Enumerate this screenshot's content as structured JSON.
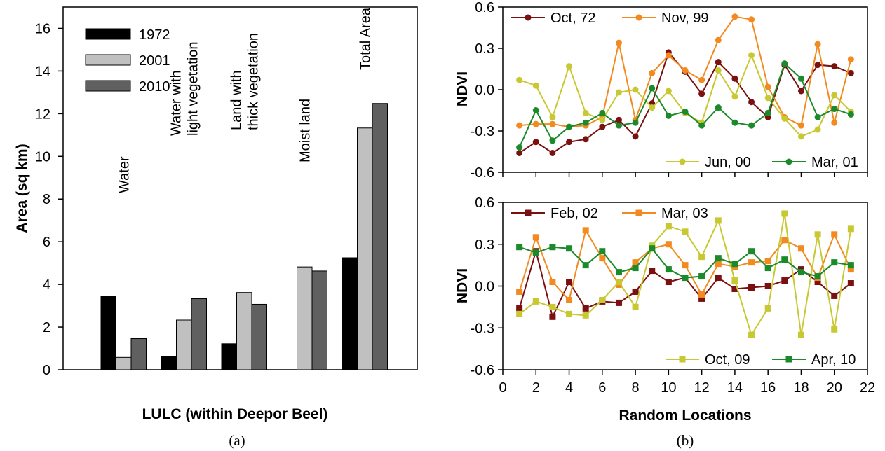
{
  "panel_labels": {
    "a": "(a)",
    "b": "(b)"
  },
  "chart_data": [
    {
      "type": "bar",
      "ylabel": "Area (sq km)",
      "xlabel": "LULC (within Deepor Beel)",
      "ylim": [
        0,
        17
      ],
      "yticks": [
        "0",
        "2",
        "4",
        "6",
        "8",
        "10",
        "12",
        "14",
        "16"
      ],
      "categories": [
        [
          "Water"
        ],
        [
          "Water with",
          "light vegetation"
        ],
        [
          "Land with",
          "thick vegetation"
        ],
        [
          "Moist land"
        ],
        [
          "Total Area"
        ]
      ],
      "series": [
        {
          "name": "1972",
          "color": "#000000",
          "values": [
            3.45,
            0.62,
            1.22,
            0,
            5.25
          ]
        },
        {
          "name": "2001",
          "color": "#c0c0c0",
          "values": [
            0.58,
            2.33,
            3.62,
            4.82,
            11.33
          ]
        },
        {
          "name": "2010",
          "color": "#606060",
          "values": [
            1.46,
            3.33,
            3.07,
            4.63,
            12.48
          ]
        }
      ],
      "legend": "top-left",
      "grid": false
    },
    {
      "type": "line",
      "ylabel": "NDVI",
      "xlim": [
        0,
        22
      ],
      "ylim": [
        -0.6,
        0.6
      ],
      "yticks": [
        "-0.6",
        "-0.3",
        "0.0",
        "0.3",
        "0.6"
      ],
      "x": [
        1,
        2,
        3,
        4,
        5,
        6,
        7,
        8,
        9,
        10,
        11,
        12,
        13,
        14,
        15,
        16,
        17,
        18,
        19,
        20,
        21
      ],
      "marker": "circle",
      "series": [
        {
          "name": "Oct, 72",
          "color": "#7b1010",
          "values": [
            -0.46,
            -0.38,
            -0.46,
            -0.38,
            -0.36,
            -0.27,
            -0.22,
            -0.34,
            -0.1,
            0.27,
            0.13,
            -0.03,
            0.2,
            0.08,
            -0.09,
            -0.2,
            0.18,
            -0.01,
            0.18,
            0.17,
            0.12
          ]
        },
        {
          "name": "Nov, 99",
          "color": "#f28a20",
          "values": [
            -0.26,
            -0.25,
            -0.25,
            -0.27,
            -0.26,
            -0.2,
            0.34,
            -0.22,
            0.12,
            0.25,
            0.14,
            0.07,
            0.36,
            0.53,
            0.51,
            0.02,
            -0.2,
            -0.26,
            0.33,
            -0.24,
            0.22
          ]
        },
        {
          "name": "Jun, 00",
          "color": "#c8c832",
          "values": [
            0.07,
            0.03,
            -0.2,
            0.17,
            -0.17,
            -0.22,
            -0.02,
            0.0,
            -0.13,
            -0.01,
            -0.17,
            -0.24,
            0.14,
            -0.05,
            0.25,
            -0.06,
            -0.21,
            -0.34,
            -0.29,
            -0.04,
            -0.16
          ]
        },
        {
          "name": "Mar, 01",
          "color": "#1a8a2a",
          "values": [
            -0.42,
            -0.15,
            -0.37,
            -0.27,
            -0.24,
            -0.17,
            -0.26,
            -0.24,
            0.01,
            -0.19,
            -0.16,
            -0.26,
            -0.13,
            -0.24,
            -0.26,
            -0.17,
            0.19,
            0.08,
            -0.2,
            -0.14,
            -0.18
          ]
        }
      ],
      "legend": [
        "top",
        "bottom"
      ]
    },
    {
      "type": "line",
      "ylabel": "NDVI",
      "xlabel": "Random Locations",
      "xlim": [
        0,
        22
      ],
      "ylim": [
        -0.6,
        0.6
      ],
      "yticks": [
        "-0.6",
        "-0.3",
        "0.0",
        "0.3",
        "0.6"
      ],
      "xticks": [
        "0",
        "2",
        "4",
        "6",
        "8",
        "10",
        "12",
        "14",
        "16",
        "18",
        "20",
        "22"
      ],
      "x": [
        1,
        2,
        3,
        4,
        5,
        6,
        7,
        8,
        9,
        10,
        11,
        12,
        13,
        14,
        15,
        16,
        17,
        18,
        19,
        20,
        21
      ],
      "marker": "square",
      "series": [
        {
          "name": "Feb, 02",
          "color": "#7b1010",
          "values": [
            -0.16,
            0.25,
            -0.22,
            0.03,
            -0.16,
            -0.11,
            -0.12,
            -0.04,
            0.11,
            0.03,
            0.06,
            -0.09,
            0.06,
            -0.02,
            -0.01,
            0.0,
            0.04,
            0.12,
            0.03,
            -0.07,
            0.02
          ]
        },
        {
          "name": "Mar, 03",
          "color": "#f28a20",
          "values": [
            -0.04,
            0.35,
            0.03,
            -0.1,
            0.4,
            0.2,
            0.01,
            0.17,
            0.27,
            0.3,
            0.15,
            -0.06,
            0.16,
            0.14,
            0.17,
            0.18,
            0.33,
            0.27,
            0.06,
            0.37,
            0.12
          ]
        },
        {
          "name": "Oct, 09",
          "color": "#c8c832",
          "values": [
            -0.2,
            -0.11,
            -0.15,
            -0.2,
            -0.21,
            -0.1,
            0.03,
            -0.15,
            0.29,
            0.43,
            0.39,
            0.21,
            0.47,
            0.04,
            -0.35,
            -0.16,
            0.52,
            -0.35,
            0.37,
            -0.31,
            0.41
          ]
        },
        {
          "name": "Apr, 10",
          "color": "#1a8a2a",
          "values": [
            0.28,
            0.24,
            0.28,
            0.27,
            0.15,
            0.25,
            0.1,
            0.13,
            0.27,
            0.12,
            0.06,
            0.07,
            0.2,
            0.16,
            0.25,
            0.13,
            0.19,
            0.1,
            0.07,
            0.17,
            0.15
          ]
        }
      ],
      "legend": [
        "top",
        "bottom"
      ]
    }
  ]
}
